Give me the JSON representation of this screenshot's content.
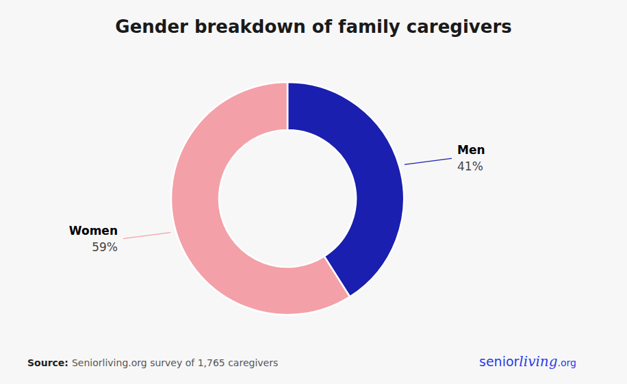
{
  "chart_data": {
    "type": "pie",
    "title": "Gender breakdown of family caregivers",
    "categories": [
      "Men",
      "Women"
    ],
    "values": [
      41,
      59
    ],
    "value_labels": [
      "41%",
      "59%"
    ],
    "colors": [
      "#1A1FAF",
      "#F4A0A8"
    ],
    "data_labels": true,
    "annotations": [
      "Source:",
      "Seniorliving.org survey of 1,765 caregivers",
      "senior",
      "living",
      ".org"
    ]
  }
}
